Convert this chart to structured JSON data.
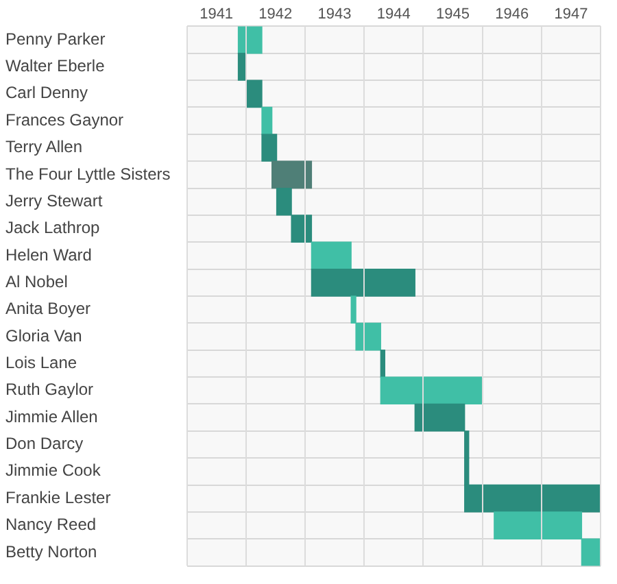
{
  "chart_data": {
    "type": "bar",
    "orientation": "horizontal",
    "grid": true,
    "legend": false,
    "categories": [
      "Penny Parker",
      "Walter Eberle",
      "Carl Denny",
      "Frances Gaynor",
      "Terry Allen",
      "The Four Lyttle Sisters",
      "Jerry Stewart",
      "Jack Lathrop",
      "Helen Ward",
      "Al Nobel",
      "Anita Boyer",
      "Gloria Van",
      "Lois Lane",
      "Ruth Gaylor",
      "Jimmie Allen",
      "Don Darcy",
      "Jimmie Cook",
      "Frankie Lester",
      "Nancy Reed",
      "Betty Norton"
    ],
    "base": [
      1941.87,
      1941.87,
      1942.0,
      1942.27,
      1942.27,
      1942.44,
      1942.52,
      1942.77,
      1943.11,
      1943.11,
      1943.78,
      1943.86,
      1944.28,
      1944.28,
      1944.86,
      1945.7,
      1945.7,
      1945.7,
      1946.2,
      1947.68
    ],
    "values": [
      0.4,
      0.13,
      0.27,
      0.17,
      0.25,
      0.67,
      0.25,
      0.34,
      0.67,
      1.75,
      0.08,
      0.42,
      0.07,
      1.72,
      0.84,
      0.07,
      0.07,
      2.3,
      1.48,
      0.32
    ],
    "colors": [
      "#40bfa6",
      "#2b8c7d",
      "#2b8c7d",
      "#40bfa6",
      "#2b8c7d",
      "#4f7f77",
      "#2b8c7d",
      "#2b8c7d",
      "#40bfa6",
      "#2b8c7d",
      "#40bfa6",
      "#40bfa6",
      "#2b8c7d",
      "#40bfa6",
      "#2b8c7d",
      "#2b8c7d",
      "#2b8c7d",
      "#2b8c7d",
      "#40bfa6",
      "#40bfa6"
    ],
    "xlim": [
      1941,
      1948
    ],
    "xticks": [
      {
        "value": 1941,
        "label": null
      },
      {
        "value": 1941.5,
        "label": "1941"
      },
      {
        "value": 1942,
        "label": null
      },
      {
        "value": 1942.5,
        "label": "1942"
      },
      {
        "value": 1943,
        "label": null
      },
      {
        "value": 1943.5,
        "label": "1943"
      },
      {
        "value": 1944,
        "label": null
      },
      {
        "value": 1944.5,
        "label": "1944"
      },
      {
        "value": 1945,
        "label": null
      },
      {
        "value": 1945.5,
        "label": "1945"
      },
      {
        "value": 1946,
        "label": null
      },
      {
        "value": 1946.5,
        "label": "1946"
      },
      {
        "value": 1947,
        "label": null
      },
      {
        "value": 1947.5,
        "label": "1947"
      },
      {
        "value": 1948,
        "label": null
      }
    ]
  }
}
